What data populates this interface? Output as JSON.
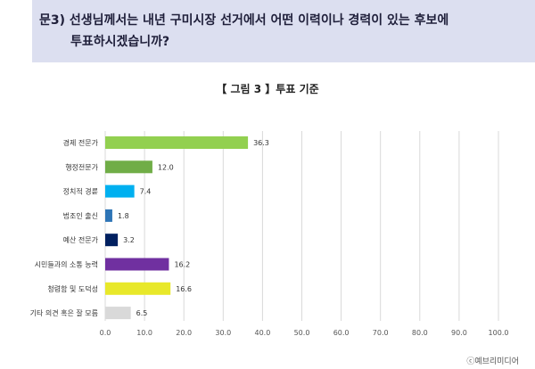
{
  "question": {
    "prefix": "문3)",
    "line1": "선생님께서는 내년 구미시장 선거에서 어떤 이력이나 경력이 있는 후보에",
    "line2": "투표하시겠습니까?"
  },
  "credit": "ⓒ예브리미디어",
  "chart_data": {
    "type": "bar",
    "orientation": "horizontal",
    "title": "【 그림 3 】투표 기준",
    "categories": [
      "경제 전문가",
      "행정전문가",
      "정치적 경륜",
      "법조인 출신",
      "예산 전문가",
      "시민들과의 소통 능력",
      "청렴함 및 도덕성",
      "기타 의견 혹은 잘 모름"
    ],
    "values": [
      36.3,
      12.0,
      7.4,
      1.8,
      3.2,
      16.2,
      16.6,
      6.5
    ],
    "value_labels": [
      "36.3",
      "12.0",
      "7.4",
      "1.8",
      "3.2",
      "16.2",
      "16.6",
      "6.5"
    ],
    "colors": [
      "#92d050",
      "#70ad47",
      "#00b0f0",
      "#2e75b6",
      "#002060",
      "#7030a0",
      "#e8e82a",
      "#d9d9d9"
    ],
    "xlim": [
      0,
      100
    ],
    "xticks": [
      "0.0",
      "10.0",
      "20.0",
      "30.0",
      "40.0",
      "50.0",
      "60.0",
      "70.0",
      "80.0",
      "90.0",
      "100.0"
    ],
    "grid": true,
    "legend": "none"
  }
}
